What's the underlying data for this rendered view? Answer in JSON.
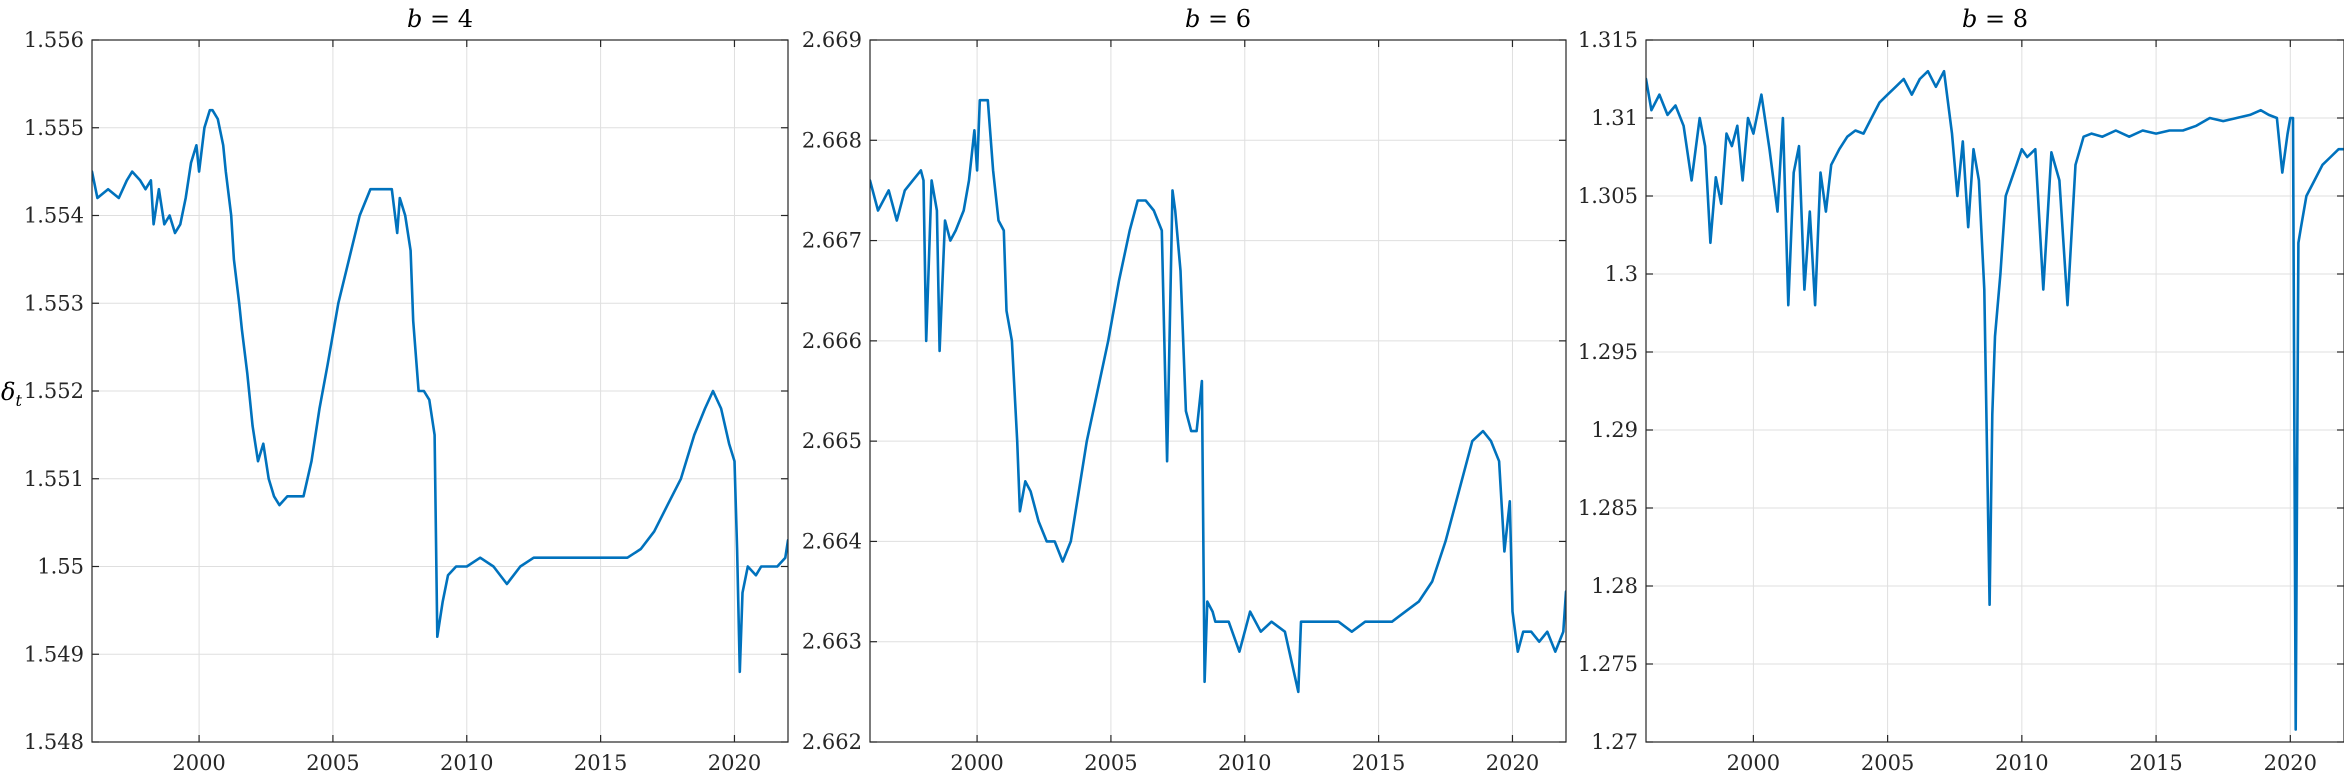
{
  "colors": {
    "series": "#0072bd",
    "axis": "#262626",
    "grid": "#dfdfdf"
  },
  "chart_data": [
    {
      "type": "line",
      "title": "b = 4",
      "title_var": "b",
      "title_value": "4",
      "ylabel": "δ",
      "ylabel_sub": "t",
      "xlim": [
        1996,
        2022
      ],
      "ylim": [
        1.548,
        1.556
      ],
      "xticks": [
        2000,
        2005,
        2010,
        2015,
        2020
      ],
      "yticks": [
        1.548,
        1.549,
        1.55,
        1.551,
        1.552,
        1.553,
        1.554,
        1.555,
        1.556
      ],
      "ytick_labels": [
        "1.548",
        "1.549",
        "1.55",
        "1.551",
        "1.552",
        "1.553",
        "1.554",
        "1.555",
        "1.556"
      ],
      "grid": true,
      "series": [
        {
          "x": [
            1996.0,
            1996.2,
            1996.6,
            1997.0,
            1997.3,
            1997.5,
            1997.8,
            1998.0,
            1998.2,
            1998.3,
            1998.5,
            1998.7,
            1998.9,
            1999.1,
            1999.3,
            1999.5,
            1999.7,
            1999.9,
            2000.0,
            2000.2,
            2000.4,
            2000.5,
            2000.7,
            2000.9,
            2001.0,
            2001.2,
            2001.3,
            2001.5,
            2001.6,
            2001.8,
            2002.0,
            2002.2,
            2002.4,
            2002.6,
            2002.8,
            2003.0,
            2003.3,
            2003.6,
            2003.9,
            2004.2,
            2004.5,
            2004.8,
            2005.2,
            2005.6,
            2006.0,
            2006.4,
            2006.8,
            2007.2,
            2007.4,
            2007.5,
            2007.7,
            2007.9,
            2008.0,
            2008.2,
            2008.4,
            2008.6,
            2008.8,
            2008.9,
            2009.1,
            2009.3,
            2009.6,
            2010.0,
            2010.5,
            2011.0,
            2011.5,
            2012.0,
            2012.5,
            2013.0,
            2013.5,
            2014.0,
            2014.5,
            2015.0,
            2015.5,
            2016.0,
            2016.5,
            2017.0,
            2017.5,
            2018.0,
            2018.5,
            2018.9,
            2019.2,
            2019.5,
            2019.8,
            2020.0,
            2020.1,
            2020.2,
            2020.3,
            2020.5,
            2020.8,
            2021.0,
            2021.3,
            2021.6,
            2021.9,
            2022.0
          ],
          "y": [
            1.5545,
            1.5542,
            1.5543,
            1.5542,
            1.5544,
            1.5545,
            1.5544,
            1.5543,
            1.5544,
            1.5539,
            1.5543,
            1.5539,
            1.554,
            1.5538,
            1.5539,
            1.5542,
            1.5546,
            1.5548,
            1.5545,
            1.555,
            1.5552,
            1.5552,
            1.5551,
            1.5548,
            1.5545,
            1.554,
            1.5535,
            1.553,
            1.5527,
            1.5522,
            1.5516,
            1.5512,
            1.5514,
            1.551,
            1.5508,
            1.5507,
            1.5508,
            1.5508,
            1.5508,
            1.5512,
            1.5518,
            1.5523,
            1.553,
            1.5535,
            1.554,
            1.5543,
            1.5543,
            1.5543,
            1.5538,
            1.5542,
            1.554,
            1.5536,
            1.5528,
            1.552,
            1.552,
            1.5519,
            1.5515,
            1.5492,
            1.5496,
            1.5499,
            1.55,
            1.55,
            1.5501,
            1.55,
            1.5498,
            1.55,
            1.5501,
            1.5501,
            1.5501,
            1.5501,
            1.5501,
            1.5501,
            1.5501,
            1.5501,
            1.5502,
            1.5504,
            1.5507,
            1.551,
            1.5515,
            1.5518,
            1.552,
            1.5518,
            1.5514,
            1.5512,
            1.5502,
            1.5488,
            1.5497,
            1.55,
            1.5499,
            1.55,
            1.55,
            1.55,
            1.5501,
            1.5503
          ]
        }
      ]
    },
    {
      "type": "line",
      "title": "b = 6",
      "title_var": "b",
      "title_value": "6",
      "xlim": [
        1996,
        2022
      ],
      "ylim": [
        2.662,
        2.669
      ],
      "xticks": [
        2000,
        2005,
        2010,
        2015,
        2020
      ],
      "yticks": [
        2.662,
        2.663,
        2.664,
        2.665,
        2.666,
        2.667,
        2.668,
        2.669
      ],
      "ytick_labels": [
        "2.662",
        "2.663",
        "2.664",
        "2.665",
        "2.666",
        "2.667",
        "2.668",
        "2.669"
      ],
      "grid": true,
      "series": [
        {
          "x": [
            1996.0,
            1996.3,
            1996.7,
            1997.0,
            1997.3,
            1997.6,
            1997.9,
            1998.0,
            1998.1,
            1998.3,
            1998.5,
            1998.6,
            1998.8,
            1999.0,
            1999.2,
            1999.5,
            1999.7,
            1999.9,
            2000.0,
            2000.1,
            2000.3,
            2000.4,
            2000.6,
            2000.8,
            2001.0,
            2001.1,
            2001.3,
            2001.5,
            2001.6,
            2001.8,
            2002.0,
            2002.3,
            2002.6,
            2002.9,
            2003.2,
            2003.5,
            2003.8,
            2004.1,
            2004.5,
            2004.9,
            2005.3,
            2005.7,
            2006.0,
            2006.3,
            2006.6,
            2006.9,
            2007.1,
            2007.3,
            2007.4,
            2007.6,
            2007.8,
            2008.0,
            2008.2,
            2008.4,
            2008.5,
            2008.6,
            2008.8,
            2008.9,
            2009.1,
            2009.4,
            2009.8,
            2010.2,
            2010.6,
            2011.0,
            2011.5,
            2012.0,
            2012.1,
            2012.5,
            2013.0,
            2013.5,
            2014.0,
            2014.5,
            2015.0,
            2015.5,
            2016.0,
            2016.5,
            2017.0,
            2017.5,
            2018.0,
            2018.5,
            2018.9,
            2019.2,
            2019.5,
            2019.7,
            2019.9,
            2020.0,
            2020.2,
            2020.4,
            2020.7,
            2021.0,
            2021.3,
            2021.6,
            2021.9,
            2022.0
          ],
          "y": [
            2.6676,
            2.6673,
            2.6675,
            2.6672,
            2.6675,
            2.6676,
            2.6677,
            2.6676,
            2.666,
            2.6676,
            2.6673,
            2.6659,
            2.6672,
            2.667,
            2.6671,
            2.6673,
            2.6676,
            2.6681,
            2.6677,
            2.6684,
            2.6684,
            2.6684,
            2.6677,
            2.6672,
            2.6671,
            2.6663,
            2.666,
            2.665,
            2.6643,
            2.6646,
            2.6645,
            2.6642,
            2.664,
            2.664,
            2.6638,
            2.664,
            2.6645,
            2.665,
            2.6655,
            2.666,
            2.6666,
            2.6671,
            2.6674,
            2.6674,
            2.6673,
            2.6671,
            2.6648,
            2.6675,
            2.6673,
            2.6667,
            2.6653,
            2.6651,
            2.6651,
            2.6656,
            2.6626,
            2.6634,
            2.6633,
            2.6632,
            2.6632,
            2.6632,
            2.6629,
            2.6633,
            2.6631,
            2.6632,
            2.6631,
            2.6625,
            2.6632,
            2.6632,
            2.6632,
            2.6632,
            2.6631,
            2.6632,
            2.6632,
            2.6632,
            2.6633,
            2.6634,
            2.6636,
            2.664,
            2.6645,
            2.665,
            2.6651,
            2.665,
            2.6648,
            2.6639,
            2.6644,
            2.6633,
            2.6629,
            2.6631,
            2.6631,
            2.663,
            2.6631,
            2.6629,
            2.6631,
            2.6635
          ]
        }
      ]
    },
    {
      "type": "line",
      "title": "b = 8",
      "title_var": "b",
      "title_value": "8",
      "xlim": [
        1996,
        2022
      ],
      "ylim": [
        1.27,
        1.315
      ],
      "xticks": [
        2000,
        2005,
        2010,
        2015,
        2020
      ],
      "yticks": [
        1.27,
        1.275,
        1.28,
        1.285,
        1.29,
        1.295,
        1.3,
        1.305,
        1.31,
        1.315
      ],
      "ytick_labels": [
        "1.27",
        "1.275",
        "1.28",
        "1.285",
        "1.29",
        "1.295",
        "1.3",
        "1.305",
        "1.31",
        "1.315"
      ],
      "grid": true,
      "series": [
        {
          "x": [
            1996.0,
            1996.2,
            1996.5,
            1996.8,
            1997.1,
            1997.4,
            1997.7,
            1998.0,
            1998.2,
            1998.4,
            1998.6,
            1998.8,
            1999.0,
            1999.2,
            1999.4,
            1999.6,
            1999.8,
            2000.0,
            2000.3,
            2000.6,
            2000.9,
            2001.1,
            2001.3,
            2001.5,
            2001.7,
            2001.9,
            2002.1,
            2002.3,
            2002.5,
            2002.7,
            2002.9,
            2003.2,
            2003.5,
            2003.8,
            2004.1,
            2004.4,
            2004.7,
            2005.0,
            2005.3,
            2005.6,
            2005.9,
            2006.2,
            2006.5,
            2006.8,
            2007.1,
            2007.4,
            2007.6,
            2007.8,
            2008.0,
            2008.2,
            2008.4,
            2008.6,
            2008.8,
            2008.9,
            2009.0,
            2009.2,
            2009.4,
            2009.6,
            2009.8,
            2010.0,
            2010.2,
            2010.5,
            2010.8,
            2011.1,
            2011.4,
            2011.7,
            2012.0,
            2012.3,
            2012.6,
            2013.0,
            2013.5,
            2014.0,
            2014.5,
            2015.0,
            2015.5,
            2016.0,
            2016.5,
            2017.0,
            2017.5,
            2018.0,
            2018.5,
            2018.9,
            2019.2,
            2019.5,
            2019.7,
            2019.9,
            2020.0,
            2020.1,
            2020.2,
            2020.3,
            2020.4,
            2020.6,
            2020.9,
            2021.2,
            2021.5,
            2021.8,
            2022.0
          ],
          "y": [
            1.3125,
            1.3105,
            1.3115,
            1.3102,
            1.3108,
            1.3095,
            1.306,
            1.31,
            1.3082,
            1.302,
            1.3062,
            1.3045,
            1.309,
            1.3082,
            1.3095,
            1.306,
            1.31,
            1.309,
            1.3115,
            1.308,
            1.304,
            1.31,
            1.298,
            1.3065,
            1.3082,
            1.299,
            1.304,
            1.298,
            1.3065,
            1.304,
            1.307,
            1.308,
            1.3088,
            1.3092,
            1.309,
            1.31,
            1.311,
            1.3115,
            1.312,
            1.3125,
            1.3115,
            1.3125,
            1.313,
            1.312,
            1.313,
            1.309,
            1.305,
            1.3085,
            1.303,
            1.308,
            1.306,
            1.299,
            1.2788,
            1.291,
            1.296,
            1.3,
            1.305,
            1.306,
            1.307,
            1.308,
            1.3075,
            1.308,
            1.299,
            1.3078,
            1.306,
            1.298,
            1.307,
            1.3088,
            1.309,
            1.3088,
            1.3092,
            1.3088,
            1.3092,
            1.309,
            1.3092,
            1.3092,
            1.3095,
            1.31,
            1.3098,
            1.31,
            1.3102,
            1.3105,
            1.3102,
            1.31,
            1.3065,
            1.309,
            1.31,
            1.31,
            1.2708,
            1.302,
            1.303,
            1.305,
            1.306,
            1.307,
            1.3075,
            1.308,
            1.308
          ]
        }
      ]
    }
  ]
}
